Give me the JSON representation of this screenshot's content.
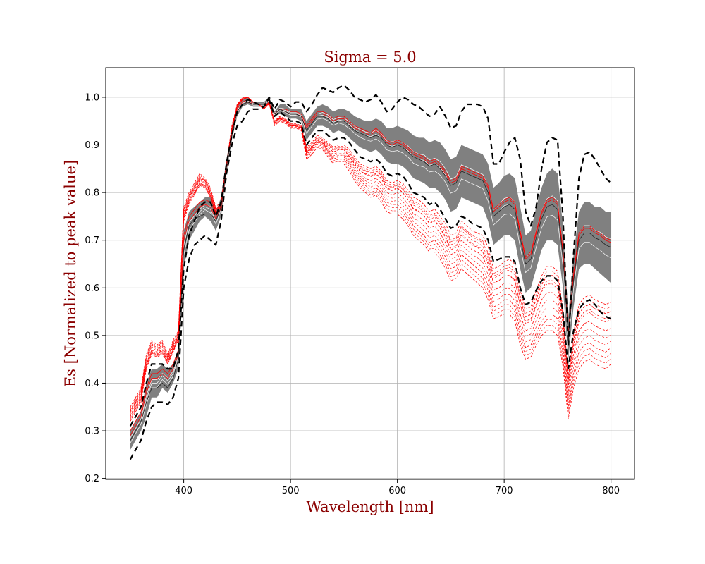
{
  "chart_data": {
    "type": "line",
    "title": "Sigma = 5.0",
    "xlabel": "Wavelength [nm]",
    "ylabel": "Es [Normalized to peak value]",
    "xlim": [
      327,
      822
    ],
    "ylim": [
      0.198,
      1.062
    ],
    "xticks": [
      400,
      500,
      600,
      700,
      800
    ],
    "yticks": [
      0.2,
      0.3,
      0.4,
      0.5,
      0.6,
      0.7,
      0.8,
      0.9,
      1.0
    ],
    "grid": true,
    "colors": {
      "band": "#808080",
      "mean": "#222222",
      "samples": "#ff0000",
      "bounds": "#000000",
      "white_samples": "#ffffff"
    },
    "x": [
      350,
      355,
      360,
      365,
      370,
      375,
      380,
      385,
      390,
      395,
      400,
      405,
      410,
      415,
      420,
      425,
      430,
      435,
      440,
      445,
      450,
      455,
      460,
      465,
      470,
      475,
      480,
      485,
      490,
      495,
      500,
      505,
      510,
      515,
      520,
      525,
      530,
      535,
      540,
      545,
      550,
      555,
      560,
      565,
      570,
      575,
      580,
      585,
      590,
      595,
      600,
      605,
      610,
      615,
      620,
      625,
      630,
      635,
      640,
      645,
      650,
      655,
      660,
      665,
      670,
      675,
      680,
      685,
      690,
      695,
      700,
      705,
      710,
      715,
      720,
      725,
      730,
      735,
      740,
      745,
      750,
      755,
      760,
      765,
      770,
      775,
      780,
      785,
      790,
      795,
      800
    ],
    "band": {
      "lower": [
        0.26,
        0.28,
        0.3,
        0.33,
        0.37,
        0.37,
        0.39,
        0.38,
        0.4,
        0.43,
        0.64,
        0.7,
        0.72,
        0.74,
        0.75,
        0.74,
        0.72,
        0.75,
        0.84,
        0.91,
        0.96,
        0.98,
        0.985,
        0.98,
        0.98,
        0.98,
        0.99,
        0.96,
        0.965,
        0.96,
        0.955,
        0.955,
        0.95,
        0.91,
        0.925,
        0.94,
        0.94,
        0.935,
        0.925,
        0.93,
        0.925,
        0.915,
        0.905,
        0.895,
        0.89,
        0.885,
        0.89,
        0.88,
        0.865,
        0.86,
        0.86,
        0.855,
        0.845,
        0.83,
        0.825,
        0.82,
        0.81,
        0.81,
        0.8,
        0.785,
        0.76,
        0.765,
        0.79,
        0.785,
        0.78,
        0.775,
        0.77,
        0.74,
        0.69,
        0.7,
        0.71,
        0.71,
        0.7,
        0.64,
        0.59,
        0.6,
        0.64,
        0.68,
        0.7,
        0.7,
        0.69,
        0.6,
        0.45,
        0.56,
        0.64,
        0.65,
        0.65,
        0.64,
        0.63,
        0.62,
        0.61
      ],
      "upper": [
        0.3,
        0.32,
        0.34,
        0.4,
        0.43,
        0.43,
        0.44,
        0.43,
        0.44,
        0.47,
        0.72,
        0.76,
        0.77,
        0.78,
        0.79,
        0.79,
        0.76,
        0.79,
        0.87,
        0.93,
        0.98,
        0.995,
        1.0,
        0.99,
        0.99,
        0.99,
        1.0,
        0.97,
        0.985,
        0.985,
        0.975,
        0.975,
        0.975,
        0.95,
        0.965,
        0.98,
        0.985,
        0.98,
        0.97,
        0.975,
        0.975,
        0.97,
        0.96,
        0.955,
        0.95,
        0.95,
        0.955,
        0.95,
        0.935,
        0.935,
        0.94,
        0.935,
        0.93,
        0.92,
        0.915,
        0.915,
        0.905,
        0.91,
        0.905,
        0.89,
        0.87,
        0.875,
        0.9,
        0.895,
        0.89,
        0.885,
        0.88,
        0.86,
        0.81,
        0.82,
        0.835,
        0.84,
        0.83,
        0.77,
        0.71,
        0.72,
        0.77,
        0.81,
        0.84,
        0.85,
        0.84,
        0.73,
        0.54,
        0.67,
        0.76,
        0.78,
        0.78,
        0.77,
        0.77,
        0.76,
        0.76
      ]
    },
    "series": [
      {
        "values": [
          0.28,
          0.3,
          0.32,
          0.36,
          0.39,
          0.39,
          0.4,
          0.39,
          0.41,
          0.45,
          0.68,
          0.73,
          0.745,
          0.75,
          0.755,
          0.755,
          0.74,
          0.77,
          0.855,
          0.92,
          0.97,
          0.985,
          0.99,
          0.985,
          0.985,
          0.985,
          0.995,
          0.965,
          0.975,
          0.97,
          0.965,
          0.965,
          0.96,
          0.93,
          0.945,
          0.96,
          0.96,
          0.955,
          0.945,
          0.95,
          0.95,
          0.94,
          0.93,
          0.925,
          0.92,
          0.915,
          0.92,
          0.915,
          0.9,
          0.895,
          0.9,
          0.895,
          0.885,
          0.875,
          0.87,
          0.865,
          0.855,
          0.86,
          0.85,
          0.835,
          0.815,
          0.82,
          0.845,
          0.84,
          0.835,
          0.83,
          0.825,
          0.8,
          0.75,
          0.76,
          0.77,
          0.775,
          0.765,
          0.705,
          0.65,
          0.66,
          0.705,
          0.745,
          0.77,
          0.775,
          0.765,
          0.665,
          0.495,
          0.615,
          0.7,
          0.715,
          0.715,
          0.705,
          0.7,
          0.69,
          0.685
        ]
      },
      {
        "values": [
          0.31,
          0.33,
          0.35,
          0.4,
          0.44,
          0.44,
          0.44,
          0.43,
          0.43,
          0.47,
          0.64,
          0.71,
          0.74,
          0.77,
          0.78,
          0.78,
          0.75,
          0.78,
          0.86,
          0.92,
          0.97,
          0.985,
          0.995,
          0.99,
          0.985,
          0.98,
          0.995,
          0.96,
          0.97,
          0.96,
          0.95,
          0.95,
          0.945,
          0.9,
          0.915,
          0.93,
          0.93,
          0.92,
          0.91,
          0.915,
          0.915,
          0.905,
          0.89,
          0.875,
          0.87,
          0.865,
          0.87,
          0.86,
          0.84,
          0.835,
          0.84,
          0.835,
          0.82,
          0.8,
          0.795,
          0.79,
          0.775,
          0.78,
          0.765,
          0.745,
          0.725,
          0.73,
          0.75,
          0.745,
          0.735,
          0.73,
          0.725,
          0.7,
          0.655,
          0.66,
          0.665,
          0.665,
          0.655,
          0.6,
          0.565,
          0.57,
          0.595,
          0.615,
          0.625,
          0.625,
          0.615,
          0.55,
          0.43,
          0.51,
          0.555,
          0.57,
          0.575,
          0.565,
          0.55,
          0.54,
          0.535
        ]
      },
      {
        "values": [
          0.24,
          0.26,
          0.28,
          0.32,
          0.35,
          0.36,
          0.36,
          0.355,
          0.37,
          0.41,
          0.6,
          0.66,
          0.69,
          0.7,
          0.71,
          0.7,
          0.69,
          0.74,
          0.84,
          0.9,
          0.94,
          0.95,
          0.97,
          0.975,
          0.975,
          0.98,
          1.0,
          0.975,
          0.995,
          0.99,
          0.98,
          0.99,
          0.99,
          0.97,
          0.985,
          1.005,
          1.02,
          1.015,
          1.01,
          1.02,
          1.025,
          1.015,
          1.0,
          0.995,
          0.99,
          0.995,
          1.005,
          0.99,
          0.97,
          0.975,
          0.99,
          1.0,
          0.995,
          0.985,
          0.98,
          0.97,
          0.96,
          0.965,
          0.98,
          0.96,
          0.935,
          0.94,
          0.97,
          0.985,
          0.985,
          0.985,
          0.98,
          0.955,
          0.86,
          0.86,
          0.885,
          0.905,
          0.915,
          0.87,
          0.76,
          0.73,
          0.77,
          0.85,
          0.905,
          0.915,
          0.91,
          0.75,
          0.48,
          0.67,
          0.83,
          0.88,
          0.885,
          0.87,
          0.85,
          0.83,
          0.82
        ]
      },
      {
        "values": [
          0.34,
          0.36,
          0.38,
          0.45,
          0.48,
          0.47,
          0.48,
          0.45,
          0.48,
          0.5,
          0.76,
          0.79,
          0.81,
          0.83,
          0.82,
          0.8,
          0.76,
          0.77,
          0.85,
          0.93,
          0.98,
          0.995,
          1.0,
          0.99,
          0.985,
          0.975,
          0.99,
          0.94,
          0.95,
          0.945,
          0.935,
          0.935,
          0.93,
          0.87,
          0.88,
          0.895,
          0.89,
          0.875,
          0.86,
          0.86,
          0.86,
          0.845,
          0.825,
          0.81,
          0.8,
          0.79,
          0.795,
          0.78,
          0.76,
          0.755,
          0.755,
          0.745,
          0.73,
          0.71,
          0.7,
          0.69,
          0.675,
          0.675,
          0.66,
          0.64,
          0.615,
          0.62,
          0.64,
          0.63,
          0.62,
          0.61,
          0.6,
          0.575,
          0.535,
          0.54,
          0.545,
          0.545,
          0.53,
          0.48,
          0.45,
          0.455,
          0.48,
          0.5,
          0.51,
          0.51,
          0.5,
          0.435,
          0.325,
          0.39,
          0.43,
          0.445,
          0.45,
          0.44,
          0.435,
          0.43,
          0.44
        ]
      },
      {
        "values": [
          0.35,
          0.37,
          0.39,
          0.46,
          0.49,
          0.48,
          0.49,
          0.46,
          0.49,
          0.51,
          0.77,
          0.8,
          0.82,
          0.84,
          0.83,
          0.81,
          0.77,
          0.78,
          0.86,
          0.94,
          0.985,
          1.0,
          1.0,
          0.99,
          0.985,
          0.975,
          0.985,
          0.95,
          0.955,
          0.95,
          0.94,
          0.94,
          0.935,
          0.88,
          0.89,
          0.905,
          0.9,
          0.885,
          0.87,
          0.875,
          0.875,
          0.86,
          0.84,
          0.825,
          0.815,
          0.805,
          0.81,
          0.8,
          0.78,
          0.775,
          0.775,
          0.765,
          0.75,
          0.73,
          0.72,
          0.71,
          0.695,
          0.7,
          0.685,
          0.665,
          0.64,
          0.645,
          0.67,
          0.66,
          0.65,
          0.64,
          0.63,
          0.605,
          0.56,
          0.565,
          0.575,
          0.575,
          0.56,
          0.51,
          0.475,
          0.48,
          0.505,
          0.53,
          0.545,
          0.545,
          0.535,
          0.465,
          0.35,
          0.42,
          0.465,
          0.48,
          0.485,
          0.475,
          0.47,
          0.465,
          0.475
        ]
      },
      {
        "values": [
          0.33,
          0.35,
          0.37,
          0.44,
          0.47,
          0.46,
          0.47,
          0.445,
          0.47,
          0.495,
          0.75,
          0.785,
          0.8,
          0.82,
          0.815,
          0.795,
          0.755,
          0.765,
          0.85,
          0.93,
          0.98,
          0.995,
          1.0,
          0.99,
          0.985,
          0.975,
          0.99,
          0.945,
          0.955,
          0.95,
          0.94,
          0.94,
          0.935,
          0.885,
          0.895,
          0.91,
          0.905,
          0.89,
          0.88,
          0.885,
          0.885,
          0.87,
          0.855,
          0.84,
          0.83,
          0.825,
          0.83,
          0.82,
          0.8,
          0.795,
          0.8,
          0.79,
          0.775,
          0.755,
          0.75,
          0.74,
          0.725,
          0.73,
          0.715,
          0.695,
          0.67,
          0.675,
          0.7,
          0.69,
          0.68,
          0.675,
          0.665,
          0.64,
          0.595,
          0.6,
          0.61,
          0.61,
          0.6,
          0.545,
          0.51,
          0.515,
          0.545,
          0.575,
          0.59,
          0.59,
          0.58,
          0.505,
          0.38,
          0.46,
          0.51,
          0.525,
          0.53,
          0.52,
          0.515,
          0.51,
          0.515
        ]
      },
      {
        "values": [
          0.32,
          0.34,
          0.36,
          0.43,
          0.46,
          0.455,
          0.46,
          0.44,
          0.465,
          0.49,
          0.74,
          0.775,
          0.795,
          0.815,
          0.81,
          0.79,
          0.755,
          0.765,
          0.855,
          0.935,
          0.98,
          0.995,
          1.0,
          0.99,
          0.985,
          0.98,
          0.99,
          0.95,
          0.96,
          0.955,
          0.945,
          0.945,
          0.94,
          0.895,
          0.905,
          0.92,
          0.915,
          0.905,
          0.895,
          0.9,
          0.9,
          0.89,
          0.875,
          0.86,
          0.855,
          0.85,
          0.855,
          0.845,
          0.825,
          0.82,
          0.825,
          0.82,
          0.805,
          0.79,
          0.785,
          0.775,
          0.76,
          0.765,
          0.75,
          0.735,
          0.71,
          0.715,
          0.74,
          0.73,
          0.72,
          0.715,
          0.71,
          0.685,
          0.64,
          0.645,
          0.655,
          0.66,
          0.65,
          0.595,
          0.555,
          0.56,
          0.595,
          0.625,
          0.645,
          0.645,
          0.635,
          0.555,
          0.415,
          0.505,
          0.565,
          0.58,
          0.585,
          0.575,
          0.57,
          0.565,
          0.57
        ]
      },
      {
        "values": [
          0.34,
          0.36,
          0.38,
          0.44,
          0.47,
          0.465,
          0.47,
          0.45,
          0.475,
          0.5,
          0.755,
          0.79,
          0.81,
          0.83,
          0.825,
          0.8,
          0.765,
          0.775,
          0.86,
          0.935,
          0.985,
          0.995,
          1.0,
          0.99,
          0.985,
          0.975,
          0.99,
          0.95,
          0.955,
          0.95,
          0.94,
          0.94,
          0.935,
          0.885,
          0.895,
          0.91,
          0.905,
          0.895,
          0.885,
          0.89,
          0.89,
          0.875,
          0.86,
          0.845,
          0.84,
          0.835,
          0.84,
          0.83,
          0.81,
          0.805,
          0.81,
          0.8,
          0.785,
          0.765,
          0.76,
          0.75,
          0.735,
          0.74,
          0.725,
          0.705,
          0.68,
          0.685,
          0.71,
          0.7,
          0.69,
          0.685,
          0.675,
          0.65,
          0.61,
          0.615,
          0.625,
          0.625,
          0.615,
          0.565,
          0.53,
          0.535,
          0.565,
          0.595,
          0.615,
          0.615,
          0.605,
          0.53,
          0.395,
          0.48,
          0.535,
          0.55,
          0.555,
          0.545,
          0.54,
          0.535,
          0.54
        ]
      },
      {
        "values": [
          0.3,
          0.32,
          0.34,
          0.39,
          0.42,
          0.42,
          0.43,
          0.42,
          0.44,
          0.47,
          0.71,
          0.75,
          0.765,
          0.78,
          0.785,
          0.78,
          0.755,
          0.78,
          0.86,
          0.925,
          0.975,
          0.99,
          0.995,
          0.985,
          0.985,
          0.985,
          0.995,
          0.965,
          0.975,
          0.97,
          0.965,
          0.965,
          0.96,
          0.935,
          0.95,
          0.965,
          0.965,
          0.96,
          0.95,
          0.955,
          0.955,
          0.945,
          0.935,
          0.93,
          0.925,
          0.92,
          0.93,
          0.92,
          0.905,
          0.9,
          0.905,
          0.9,
          0.89,
          0.88,
          0.875,
          0.87,
          0.86,
          0.865,
          0.855,
          0.84,
          0.82,
          0.825,
          0.85,
          0.845,
          0.84,
          0.835,
          0.83,
          0.81,
          0.76,
          0.77,
          0.78,
          0.785,
          0.775,
          0.715,
          0.66,
          0.67,
          0.715,
          0.755,
          0.78,
          0.785,
          0.775,
          0.675,
          0.5,
          0.625,
          0.71,
          0.725,
          0.725,
          0.715,
          0.71,
          0.7,
          0.695
        ]
      },
      {
        "values": [
          0.29,
          0.31,
          0.33,
          0.38,
          0.41,
          0.41,
          0.42,
          0.41,
          0.43,
          0.46,
          0.7,
          0.74,
          0.755,
          0.77,
          0.775,
          0.77,
          0.745,
          0.775,
          0.855,
          0.92,
          0.97,
          0.985,
          0.99,
          0.985,
          0.985,
          0.985,
          0.995,
          0.965,
          0.975,
          0.975,
          0.97,
          0.97,
          0.965,
          0.94,
          0.955,
          0.97,
          0.97,
          0.965,
          0.955,
          0.96,
          0.96,
          0.95,
          0.94,
          0.935,
          0.93,
          0.925,
          0.935,
          0.925,
          0.91,
          0.905,
          0.91,
          0.905,
          0.895,
          0.885,
          0.88,
          0.875,
          0.865,
          0.87,
          0.86,
          0.845,
          0.825,
          0.83,
          0.855,
          0.85,
          0.845,
          0.84,
          0.835,
          0.815,
          0.765,
          0.775,
          0.785,
          0.79,
          0.78,
          0.72,
          0.665,
          0.675,
          0.72,
          0.76,
          0.785,
          0.79,
          0.78,
          0.68,
          0.505,
          0.63,
          0.715,
          0.73,
          0.73,
          0.72,
          0.715,
          0.705,
          0.7
        ]
      }
    ]
  }
}
